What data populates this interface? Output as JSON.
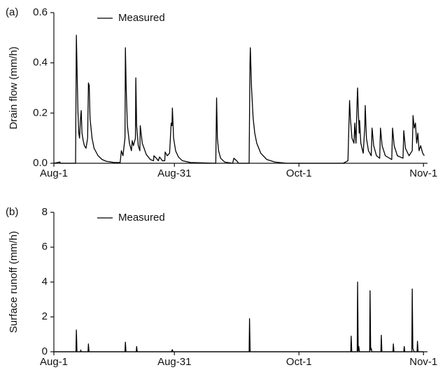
{
  "chart_data": [
    {
      "type": "line",
      "panel_label": "(a)",
      "y_label": "Drain flow (mm/h)",
      "xlim": [
        0,
        93
      ],
      "xticks": [
        {
          "value": 0,
          "label": "Aug-1"
        },
        {
          "value": 30,
          "label": "Aug-31"
        },
        {
          "value": 61,
          "label": "Oct-1"
        },
        {
          "value": 92,
          "label": "Nov-1"
        }
      ],
      "ylim": [
        0,
        0.6
      ],
      "yticks": [
        {
          "value": 0,
          "label": "0.0"
        },
        0.2,
        0.4,
        0.6
      ],
      "legend": "top-left",
      "x": [
        0,
        1.5,
        1.6,
        5.4,
        5.6,
        5.8,
        6.0,
        6.2,
        6.4,
        6.6,
        6.8,
        7.0,
        7.3,
        7.6,
        8.0,
        8.4,
        8.6,
        8.8,
        9.0,
        9.5,
        10,
        11,
        12,
        13,
        15,
        16.5,
        16.8,
        17.2,
        17.7,
        17.8,
        18.0,
        18.3,
        18.8,
        19.3,
        19.5,
        19.8,
        20.3,
        20.4,
        20.6,
        21.0,
        21.4,
        21.5,
        22,
        23,
        24,
        24.8,
        24.9,
        25.5,
        26,
        26.3,
        27,
        27.6,
        27.7,
        28.2,
        28.8,
        29.0,
        29.2,
        29.4,
        29.5,
        29.8,
        30.3,
        31,
        32,
        34,
        40.3,
        40.5,
        40.7,
        41,
        41.5,
        42.5,
        44.5,
        44.8,
        45.5,
        46,
        48.6,
        48.8,
        48.9,
        49.2,
        49.6,
        50,
        50.5,
        51.5,
        53,
        55,
        58,
        72,
        73.2,
        73.6,
        73.8,
        74.2,
        74.7,
        74.9,
        75.2,
        75.5,
        75.6,
        75.8,
        76,
        76.1,
        76.4,
        77,
        77.4,
        77.5,
        77.8,
        78.3,
        79.0,
        79.2,
        79.6,
        80.3,
        81.1,
        81.3,
        81.7,
        82.5,
        84.1,
        84.3,
        84.7,
        85.5,
        86.9,
        87.1,
        87.5,
        88.4,
        89.2,
        89.4,
        89.7,
        90.0,
        90.3,
        90.6,
        90.9,
        91.3,
        91.8,
        92.2
      ],
      "series": [
        {
          "name": "Measured",
          "color": "#000000",
          "values": [
            0,
            0.005,
            0,
            0,
            0.51,
            0.35,
            0.2,
            0.12,
            0.1,
            0.17,
            0.21,
            0.12,
            0.09,
            0.07,
            0.06,
            0.1,
            0.32,
            0.31,
            0.18,
            0.1,
            0.06,
            0.03,
            0.015,
            0.008,
            0.003,
            0.003,
            0.05,
            0.03,
            0.1,
            0.46,
            0.3,
            0.15,
            0.08,
            0.05,
            0.09,
            0.07,
            0.1,
            0.34,
            0.15,
            0.07,
            0.05,
            0.15,
            0.08,
            0.035,
            0.015,
            0.01,
            0.03,
            0.02,
            0.01,
            0.025,
            0.01,
            0.01,
            0.045,
            0.03,
            0.04,
            0.1,
            0.16,
            0.15,
            0.22,
            0.1,
            0.05,
            0.025,
            0.01,
            0.003,
            0,
            0.26,
            0.1,
            0.05,
            0.02,
            0.005,
            0,
            0.02,
            0.01,
            0,
            0,
            0.39,
            0.46,
            0.3,
            0.18,
            0.12,
            0.08,
            0.04,
            0.015,
            0.005,
            0,
            0,
            0.01,
            0.25,
            0.18,
            0.1,
            0.08,
            0.16,
            0.08,
            0.26,
            0.3,
            0.2,
            0.12,
            0.17,
            0.08,
            0.04,
            0.15,
            0.23,
            0.1,
            0.05,
            0.03,
            0.14,
            0.07,
            0.03,
            0.02,
            0.14,
            0.07,
            0.03,
            0.015,
            0.14,
            0.07,
            0.03,
            0.02,
            0.13,
            0.06,
            0.03,
            0.05,
            0.19,
            0.14,
            0.16,
            0.08,
            0.12,
            0.05,
            0.07,
            0.04,
            0.03
          ]
        }
      ]
    },
    {
      "type": "line",
      "panel_label": "(b)",
      "y_label": "Surface runoff (mm/h)",
      "xlim": [
        0,
        93
      ],
      "xticks": [
        {
          "value": 0,
          "label": "Aug-1"
        },
        {
          "value": 30,
          "label": "Aug-31"
        },
        {
          "value": 61,
          "label": "Oct-1"
        },
        {
          "value": 92,
          "label": "Nov-1"
        }
      ],
      "ylim": [
        0,
        8
      ],
      "yticks": [
        0,
        2,
        4,
        6,
        8
      ],
      "legend": "top-left",
      "x": [
        0,
        5.5,
        5.6,
        5.75,
        6.6,
        6.7,
        6.8,
        8.5,
        8.6,
        8.75,
        17.7,
        17.8,
        17.95,
        20.5,
        20.6,
        20.75,
        29.3,
        29.4,
        29.5,
        29.65,
        48.6,
        48.7,
        48.85,
        73.9,
        74.0,
        74.15,
        75.5,
        75.6,
        75.75,
        75.9,
        76.05,
        78.6,
        78.7,
        78.85,
        79.0,
        79.15,
        81.4,
        81.5,
        81.65,
        84.4,
        84.5,
        84.65,
        87.1,
        87.2,
        87.35,
        89.1,
        89.2,
        89.35,
        89.5,
        89.65,
        90.4,
        90.5,
        90.65,
        92
      ],
      "series": [
        {
          "name": "Measured",
          "color": "#000000",
          "values": [
            0,
            0,
            1.25,
            0,
            0,
            0.1,
            0,
            0,
            0.45,
            0,
            0,
            0.55,
            0,
            0,
            0.3,
            0,
            0,
            0.08,
            0.12,
            0,
            0,
            1.9,
            0,
            0,
            0.9,
            0,
            0,
            4.0,
            0.05,
            0.3,
            0,
            0,
            3.5,
            0.1,
            0.2,
            0,
            0,
            0.95,
            0,
            0,
            0.45,
            0,
            0,
            0.3,
            0,
            0,
            3.6,
            0.2,
            0.1,
            0,
            0,
            0.6,
            0,
            0
          ]
        }
      ]
    }
  ]
}
